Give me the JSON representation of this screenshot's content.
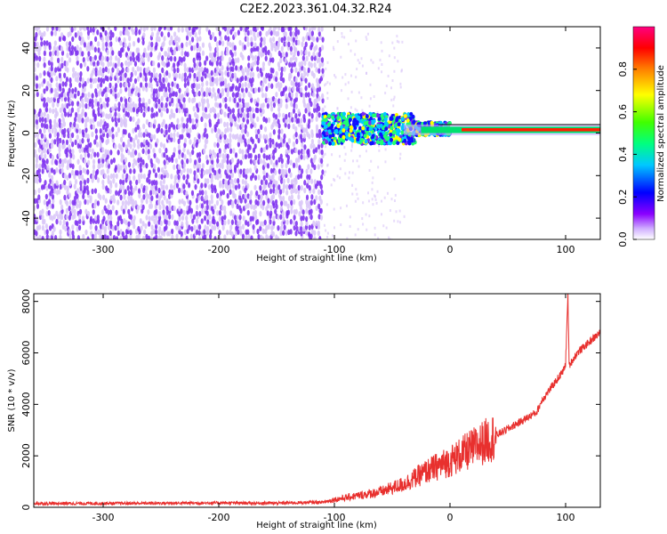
{
  "title": "C2E2.2023.361.04.32.R24",
  "colors": {
    "spectrogram_low": "#7b2cf0",
    "spectrogram_noise_light": "#d8c4f8",
    "line_series": "#e8302e",
    "frame": "#000000"
  },
  "chart_data": [
    {
      "type": "heatmap",
      "xlabel": "Height of straight line (km)",
      "ylabel": "Frequency (Hz)",
      "xlim": [
        -360,
        130
      ],
      "ylim": [
        -50,
        50
      ],
      "x_ticks": [
        -300,
        -200,
        -100,
        0,
        100
      ],
      "y_ticks": [
        -40,
        -20,
        0,
        20,
        40
      ],
      "colorbar": {
        "label": "Normalized spectral amplitude",
        "range": [
          0.0,
          1.0
        ],
        "ticks": [
          0.0,
          0.2,
          0.4,
          0.6,
          0.8
        ],
        "colormap": "rainbow"
      },
      "description_regions": [
        {
          "x_range": [
            -360,
            -110
          ],
          "freq_range": [
            -50,
            50
          ],
          "amplitude": 0.05
        },
        {
          "x_range": [
            -110,
            0
          ],
          "freq_range": [
            -5,
            10
          ],
          "amplitude": 0.4
        },
        {
          "x_range": [
            0,
            130
          ],
          "freq_range": [
            -1,
            3
          ],
          "amplitude": 0.9
        }
      ],
      "grid": false
    },
    {
      "type": "line",
      "xlabel": "Height of straight line (km)",
      "ylabel": "SNR (10 * v/v)",
      "xlim": [
        -360,
        130
      ],
      "ylim": [
        0,
        8300
      ],
      "x_ticks": [
        -300,
        -200,
        -100,
        0,
        100
      ],
      "y_ticks": [
        0,
        2000,
        4000,
        6000,
        8000
      ],
      "series": [
        {
          "x": [
            -360,
            -300,
            -200,
            -150,
            -110,
            -100,
            -80,
            -60,
            -40,
            -20,
            0,
            20,
            40,
            60,
            75,
            80,
            90,
            98,
            100,
            102,
            103,
            110,
            120,
            130
          ],
          "values": [
            150,
            150,
            170,
            160,
            200,
            300,
            450,
            600,
            900,
            1400,
            1800,
            2300,
            2800,
            3300,
            3700,
            4200,
            4800,
            5300,
            5600,
            8300,
            5500,
            6000,
            6400,
            6800
          ]
        }
      ],
      "grid": false
    }
  ]
}
